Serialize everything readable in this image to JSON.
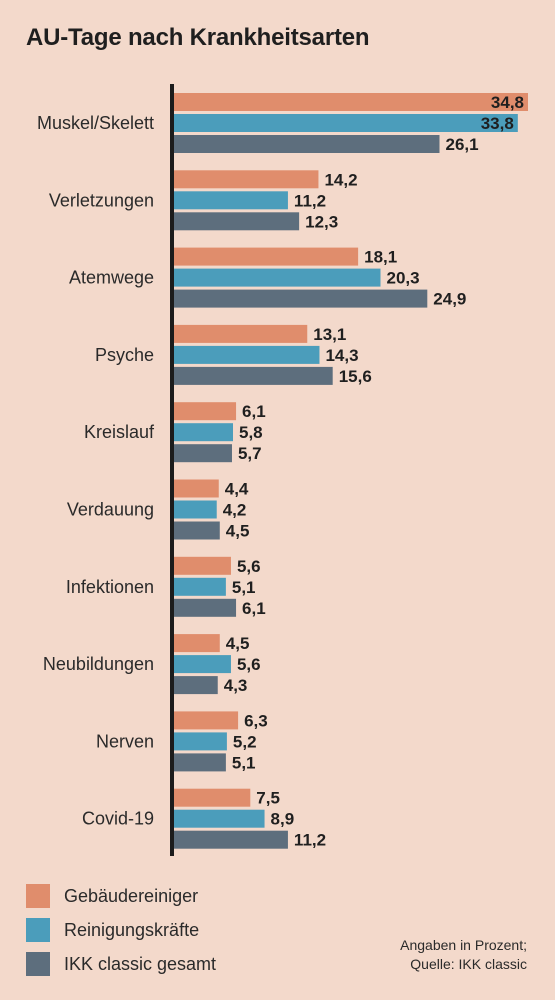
{
  "chart_data": {
    "type": "bar",
    "orientation": "horizontal",
    "title": "AU-Tage nach Krankheitsarten",
    "categories": [
      "Muskel/Skelett",
      "Verletzungen",
      "Atemwege",
      "Psyche",
      "Kreislauf",
      "Verdauung",
      "Infektionen",
      "Neubildungen",
      "Nerven",
      "Covid-19"
    ],
    "series": [
      {
        "name": "Gebäudereiniger",
        "color": "#e08d6c",
        "values": [
          34.8,
          14.2,
          18.1,
          13.1,
          6.1,
          4.4,
          5.6,
          4.5,
          6.3,
          7.5
        ],
        "labels": [
          "34,8",
          "14,2",
          "18,1",
          "13,1",
          "6,1",
          "4,4",
          "5,6",
          "4,5",
          "6,3",
          "7,5"
        ]
      },
      {
        "name": "Reinigungskräfte",
        "color": "#4b9dbb",
        "values": [
          33.8,
          11.2,
          20.3,
          14.3,
          5.8,
          4.2,
          5.1,
          5.6,
          5.2,
          8.9
        ],
        "labels": [
          "33,8",
          "11,2",
          "20,3",
          "14,3",
          "5,8",
          "4,2",
          "5,1",
          "5,6",
          "5,2",
          "8,9"
        ]
      },
      {
        "name": "IKK classic gesamt",
        "color": "#5d6e7d",
        "values": [
          26.1,
          12.3,
          24.9,
          15.6,
          5.7,
          4.5,
          6.1,
          4.3,
          5.1,
          11.2
        ],
        "labels": [
          "26,1",
          "12,3",
          "24,9",
          "15,6",
          "5,7",
          "4,5",
          "6,1",
          "4,3",
          "5,1",
          "11,2"
        ]
      }
    ],
    "xlim": [
      0,
      34.8
    ],
    "grid": false,
    "legend_position": "bottom-left",
    "note": [
      "Angaben in Prozent;",
      "Quelle: IKK classic"
    ]
  },
  "colors": {
    "background": "#f3d9cb",
    "axis": "#1c1c1c"
  }
}
